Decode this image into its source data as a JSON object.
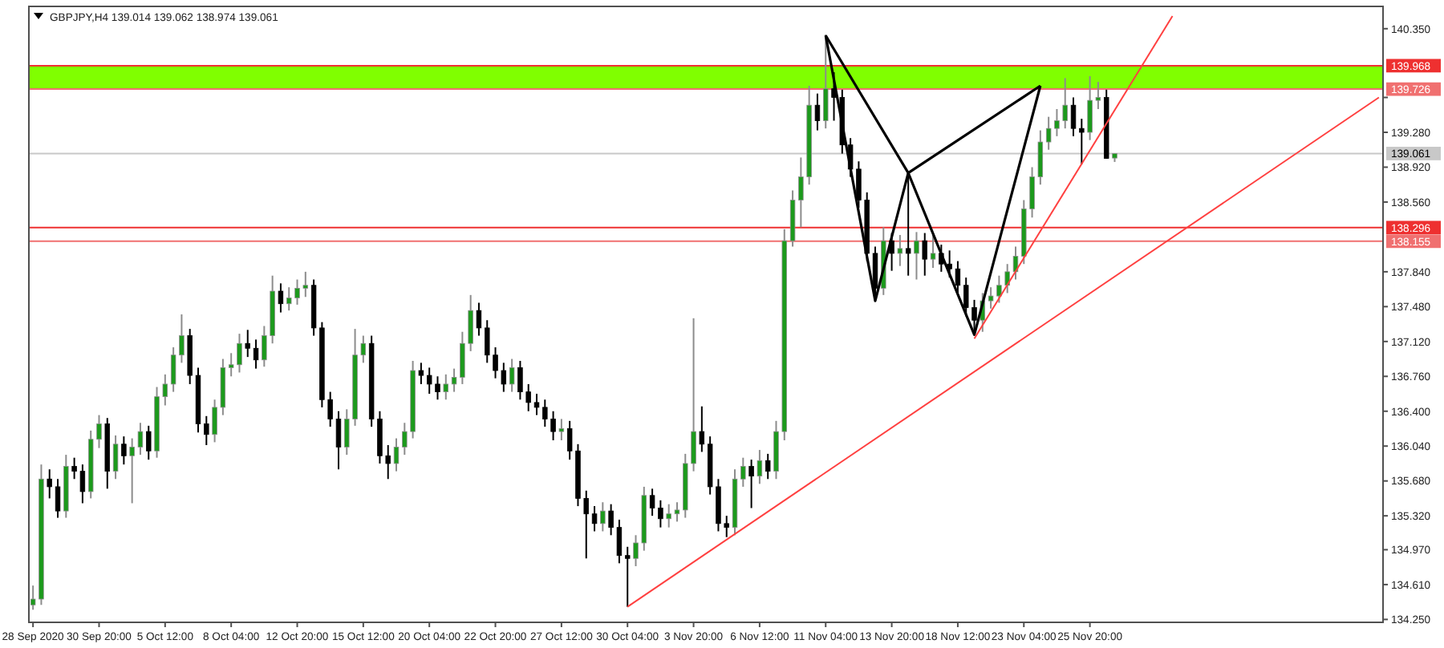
{
  "chart_data": {
    "type": "candlestick",
    "title": "GBPJPY,H4  139.014 139.062 138.974 139.061",
    "categories": [
      "28 Sep 2020",
      null,
      null,
      null,
      null,
      null,
      null,
      null,
      "30 Sep 20:00",
      null,
      null,
      null,
      null,
      null,
      null,
      null,
      "5 Oct 12:00",
      null,
      null,
      null,
      null,
      null,
      null,
      null,
      "8 Oct 04:00",
      null,
      null,
      null,
      null,
      null,
      null,
      null,
      "12 Oct 20:00",
      null,
      null,
      null,
      null,
      null,
      null,
      null,
      "15 Oct 12:00",
      null,
      null,
      null,
      null,
      null,
      null,
      null,
      "20 Oct 04:00",
      null,
      null,
      null,
      null,
      null,
      null,
      null,
      "22 Oct 20:00",
      null,
      null,
      null,
      null,
      null,
      null,
      null,
      "27 Oct 12:00",
      null,
      null,
      null,
      null,
      null,
      null,
      null,
      "30 Oct 04:00",
      null,
      null,
      null,
      null,
      null,
      null,
      null,
      "3 Nov 20:00",
      null,
      null,
      null,
      null,
      null,
      null,
      null,
      "6 Nov 12:00",
      null,
      null,
      null,
      null,
      null,
      null,
      null,
      "11 Nov 04:00",
      null,
      null,
      null,
      null,
      null,
      null,
      null,
      "13 Nov 20:00",
      null,
      null,
      null,
      null,
      null,
      null,
      null,
      "18 Nov 12:00",
      null,
      null,
      null,
      null,
      null,
      null,
      null,
      "23 Nov 04:00",
      null,
      null,
      null,
      null,
      null,
      null,
      null,
      "25 Nov 20:00",
      null,
      null,
      null,
      null,
      null,
      null,
      null,
      null,
      null,
      null,
      null,
      null,
      null,
      null,
      null,
      null,
      null,
      null,
      null,
      null,
      null,
      null,
      null,
      null,
      null,
      null,
      null,
      null,
      null,
      null,
      null,
      null,
      null,
      null,
      null
    ],
    "ylim": [
      134.22,
      140.58
    ],
    "yticks": [
      {
        "value": 140.35,
        "label": "140.350"
      },
      {
        "value": 139.64,
        "label": null
      },
      {
        "value": 139.28,
        "label": "139.280"
      },
      {
        "value": 138.92,
        "label": "138.920"
      },
      {
        "value": 138.56,
        "label": "138.560"
      },
      {
        "value": 137.84,
        "label": "137.840"
      },
      {
        "value": 137.48,
        "label": "137.480"
      },
      {
        "value": 137.12,
        "label": "137.120"
      },
      {
        "value": 136.76,
        "label": "136.760"
      },
      {
        "value": 136.4,
        "label": "136.400"
      },
      {
        "value": 136.04,
        "label": "136.040"
      },
      {
        "value": 135.68,
        "label": "135.680"
      },
      {
        "value": 135.32,
        "label": "135.320"
      },
      {
        "value": 134.97,
        "label": "134.970"
      },
      {
        "value": 134.61,
        "label": "134.610"
      },
      {
        "value": 134.25,
        "label": "134.250"
      }
    ],
    "ref_lines": [
      {
        "axis": "y",
        "value": 139.968,
        "label": "139.968",
        "color": "#ee3030"
      },
      {
        "axis": "y",
        "value": 139.726,
        "label": "139.726",
        "color": "#f07070"
      },
      {
        "axis": "y",
        "value": 139.061,
        "label": "139.061",
        "color": "#c8c8c8"
      },
      {
        "axis": "y",
        "value": 138.296,
        "label": "138.296",
        "color": "#ee3030"
      },
      {
        "axis": "y",
        "value": 138.155,
        "label": "138.155",
        "color": "#f07070"
      }
    ],
    "bands": [
      {
        "axis": "y",
        "from": 139.726,
        "to": 139.968,
        "color": "#80ff00"
      }
    ],
    "series": [
      {
        "ohlc": [
          [
            134.4,
            134.6,
            134.35,
            134.46
          ],
          [
            134.46,
            135.85,
            134.4,
            135.7
          ],
          [
            135.7,
            135.8,
            135.5,
            135.62
          ],
          [
            135.62,
            135.7,
            135.3,
            135.37
          ],
          [
            135.37,
            135.95,
            135.3,
            135.83
          ],
          [
            135.83,
            135.92,
            135.7,
            135.78
          ],
          [
            135.78,
            135.85,
            135.45,
            135.57
          ],
          [
            135.57,
            136.2,
            135.5,
            136.11
          ],
          [
            136.11,
            136.36,
            136.02,
            136.27
          ],
          [
            136.27,
            136.33,
            135.6,
            135.78
          ],
          [
            135.78,
            136.15,
            135.7,
            136.06
          ],
          [
            136.06,
            136.14,
            135.85,
            135.94
          ],
          [
            135.94,
            136.12,
            135.45,
            136.03
          ],
          [
            136.03,
            136.28,
            135.95,
            136.19
          ],
          [
            136.19,
            136.25,
            135.9,
            135.99
          ],
          [
            135.99,
            136.65,
            135.92,
            136.55
          ],
          [
            136.55,
            136.78,
            136.46,
            136.68
          ],
          [
            136.68,
            137.06,
            136.6,
            136.98
          ],
          [
            136.98,
            137.4,
            136.9,
            137.18
          ],
          [
            137.18,
            137.25,
            136.68,
            136.77
          ],
          [
            136.77,
            136.85,
            136.18,
            136.27
          ],
          [
            136.27,
            136.35,
            136.05,
            136.16
          ],
          [
            136.16,
            136.52,
            136.08,
            136.44
          ],
          [
            136.44,
            136.94,
            136.36,
            136.85
          ],
          [
            136.85,
            137.0,
            136.76,
            136.88
          ],
          [
            136.88,
            137.2,
            136.8,
            137.1
          ],
          [
            137.1,
            137.24,
            136.96,
            137.05
          ],
          [
            137.05,
            137.14,
            136.84,
            136.93
          ],
          [
            136.93,
            137.28,
            136.86,
            137.18
          ],
          [
            137.18,
            137.8,
            137.1,
            137.64
          ],
          [
            137.64,
            137.72,
            137.42,
            137.51
          ],
          [
            137.51,
            137.68,
            137.44,
            137.57
          ],
          [
            137.57,
            137.76,
            137.5,
            137.67
          ],
          [
            137.67,
            137.84,
            137.58,
            137.7
          ],
          [
            137.7,
            137.76,
            137.18,
            137.26
          ],
          [
            137.26,
            137.32,
            136.44,
            136.52
          ],
          [
            136.52,
            136.6,
            136.24,
            136.32
          ],
          [
            136.32,
            136.4,
            135.8,
            136.03
          ],
          [
            136.03,
            136.42,
            135.95,
            136.32
          ],
          [
            136.32,
            137.25,
            136.25,
            136.98
          ],
          [
            136.98,
            137.18,
            136.9,
            137.1
          ],
          [
            137.1,
            137.18,
            136.24,
            136.32
          ],
          [
            136.32,
            136.4,
            135.86,
            135.94
          ],
          [
            135.94,
            136.05,
            135.7,
            135.86
          ],
          [
            135.86,
            136.12,
            135.78,
            136.03
          ],
          [
            136.03,
            136.28,
            135.95,
            136.19
          ],
          [
            136.19,
            136.92,
            136.12,
            136.82
          ],
          [
            136.82,
            136.9,
            136.68,
            136.77
          ],
          [
            136.77,
            136.85,
            136.58,
            136.68
          ],
          [
            136.68,
            136.76,
            136.52,
            136.6
          ],
          [
            136.6,
            136.78,
            136.52,
            136.68
          ],
          [
            136.68,
            136.84,
            136.6,
            136.75
          ],
          [
            136.75,
            137.22,
            136.68,
            137.1
          ],
          [
            137.1,
            137.6,
            137.02,
            137.44
          ],
          [
            137.44,
            137.52,
            137.18,
            137.26
          ],
          [
            137.26,
            137.34,
            136.9,
            136.98
          ],
          [
            136.98,
            137.06,
            136.74,
            136.82
          ],
          [
            136.82,
            136.9,
            136.6,
            136.68
          ],
          [
            136.68,
            136.94,
            136.6,
            136.85
          ],
          [
            136.85,
            136.92,
            136.52,
            136.6
          ],
          [
            136.6,
            136.68,
            136.4,
            136.49
          ],
          [
            136.49,
            136.58,
            136.36,
            136.44
          ],
          [
            136.44,
            136.52,
            136.24,
            136.32
          ],
          [
            136.32,
            136.4,
            136.1,
            136.19
          ],
          [
            136.19,
            136.32,
            136.1,
            136.22
          ],
          [
            136.22,
            136.3,
            135.9,
            135.99
          ],
          [
            135.99,
            136.06,
            135.42,
            135.5
          ],
          [
            135.5,
            135.58,
            134.88,
            135.34
          ],
          [
            135.34,
            135.42,
            135.16,
            135.24
          ],
          [
            135.24,
            135.46,
            135.16,
            135.37
          ],
          [
            135.37,
            135.44,
            135.12,
            135.2
          ],
          [
            135.2,
            135.28,
            134.83,
            134.91
          ],
          [
            134.91,
            135.0,
            134.38,
            134.88
          ],
          [
            134.88,
            135.12,
            134.8,
            135.04
          ],
          [
            135.04,
            135.62,
            134.96,
            135.53
          ],
          [
            135.53,
            135.6,
            135.32,
            135.4
          ],
          [
            135.4,
            135.48,
            135.2,
            135.29
          ],
          [
            135.29,
            135.44,
            135.2,
            135.34
          ],
          [
            135.34,
            135.46,
            135.26,
            135.38
          ],
          [
            135.38,
            135.96,
            135.3,
            135.86
          ],
          [
            135.86,
            137.36,
            135.78,
            136.19
          ],
          [
            136.19,
            136.45,
            135.98,
            136.06
          ],
          [
            136.06,
            136.14,
            135.54,
            135.62
          ],
          [
            135.62,
            135.7,
            135.16,
            135.24
          ],
          [
            135.24,
            135.32,
            135.1,
            135.2
          ],
          [
            135.2,
            135.8,
            135.12,
            135.7
          ],
          [
            135.7,
            135.92,
            135.62,
            135.83
          ],
          [
            135.83,
            135.9,
            135.4,
            135.73
          ],
          [
            135.73,
            136.0,
            135.65,
            135.89
          ],
          [
            135.89,
            135.96,
            135.7,
            135.78
          ],
          [
            135.78,
            136.3,
            135.7,
            136.19
          ],
          [
            136.19,
            138.28,
            136.1,
            138.16
          ],
          [
            138.16,
            138.68,
            138.1,
            138.58
          ],
          [
            138.58,
            139.02,
            138.3,
            138.82
          ],
          [
            138.82,
            139.76,
            138.74,
            139.56
          ],
          [
            139.56,
            139.68,
            139.3,
            139.4
          ],
          [
            139.4,
            140.29,
            139.32,
            139.73
          ],
          [
            139.73,
            139.9,
            139.4,
            139.64
          ],
          [
            139.64,
            139.72,
            139.06,
            139.15
          ],
          [
            139.15,
            139.22,
            138.82,
            138.9
          ],
          [
            138.9,
            138.98,
            138.5,
            138.58
          ],
          [
            138.58,
            138.66,
            137.95,
            138.03
          ],
          [
            138.03,
            138.1,
            137.54,
            137.67
          ],
          [
            137.67,
            138.3,
            137.6,
            138.16
          ],
          [
            138.16,
            138.24,
            137.85,
            138.03
          ],
          [
            138.03,
            138.22,
            137.9,
            138.08
          ],
          [
            138.08,
            138.86,
            137.8,
            138.03
          ],
          [
            138.03,
            138.25,
            137.76,
            138.16
          ],
          [
            138.16,
            138.24,
            137.8,
            137.97
          ],
          [
            137.97,
            138.22,
            137.88,
            138.03
          ],
          [
            138.03,
            138.12,
            137.84,
            137.92
          ],
          [
            137.92,
            138.06,
            137.78,
            137.87
          ],
          [
            137.87,
            137.95,
            137.62,
            137.7
          ],
          [
            137.7,
            137.78,
            137.38,
            137.47
          ],
          [
            137.47,
            137.55,
            137.19,
            137.34
          ],
          [
            137.34,
            137.62,
            137.22,
            137.54
          ],
          [
            137.54,
            137.68,
            137.46,
            137.59
          ],
          [
            137.59,
            137.8,
            137.52,
            137.7
          ],
          [
            137.7,
            137.92,
            137.62,
            137.84
          ],
          [
            137.84,
            138.1,
            137.76,
            138.0
          ],
          [
            138.0,
            138.58,
            137.92,
            138.49
          ],
          [
            138.49,
            138.92,
            138.4,
            138.82
          ],
          [
            138.82,
            139.3,
            138.74,
            139.18
          ],
          [
            139.18,
            139.44,
            139.1,
            139.32
          ],
          [
            139.32,
            139.52,
            139.24,
            139.4
          ],
          [
            139.4,
            139.84,
            139.32,
            139.56
          ],
          [
            139.56,
            139.64,
            139.24,
            139.32
          ],
          [
            139.32,
            139.42,
            138.95,
            139.28
          ],
          [
            139.28,
            139.86,
            139.2,
            139.61
          ],
          [
            139.61,
            139.8,
            139.52,
            139.64
          ],
          [
            139.64,
            139.72,
            139.01,
            139.01
          ],
          [
            139.014,
            139.062,
            138.974,
            139.061
          ],
          null,
          null,
          null,
          null,
          null,
          null,
          null,
          null,
          null,
          null,
          null,
          null,
          null,
          null,
          null,
          null,
          null,
          null,
          null,
          null,
          null,
          null,
          null,
          null,
          null,
          null,
          null,
          null,
          null,
          null,
          null,
          null
        ]
      },
      {
        "type": "line",
        "color": "#000000",
        "values": [
          null,
          null,
          null,
          null,
          null,
          null,
          null,
          null,
          null,
          null,
          null,
          null,
          null,
          null,
          null,
          null,
          null,
          null,
          null,
          null,
          null,
          null,
          null,
          null,
          null,
          null,
          null,
          null,
          null,
          null,
          null,
          null,
          null,
          null,
          null,
          null,
          null,
          null,
          null,
          null,
          null,
          null,
          null,
          null,
          null,
          null,
          null,
          null,
          null,
          null,
          null,
          null,
          null,
          null,
          null,
          null,
          null,
          null,
          null,
          null,
          null,
          null,
          null,
          null,
          null,
          null,
          null,
          null,
          null,
          null,
          null,
          null,
          null,
          null,
          null,
          null,
          null,
          null,
          null,
          null,
          null,
          null,
          null,
          null,
          null,
          null,
          null,
          null,
          null,
          null,
          null,
          null,
          null,
          null,
          null,
          null,
          140.28,
          null,
          null,
          null,
          null,
          null,
          137.54,
          null,
          null,
          null,
          138.86,
          null,
          null,
          null,
          null,
          null,
          null,
          null,
          137.19,
          null,
          null,
          null,
          null,
          null,
          null,
          null,
          139.76,
          null,
          null,
          null,
          null,
          null,
          null,
          null,
          null,
          null,
          null,
          null,
          null,
          null,
          null,
          null,
          null,
          null,
          null,
          null,
          null,
          null,
          null,
          null,
          null,
          null,
          null,
          null,
          null,
          null,
          null,
          null,
          null,
          null,
          null,
          null,
          null,
          null,
          null,
          null,
          null,
          null
        ]
      },
      {
        "type": "line",
        "color": "#000000",
        "values": [
          null,
          null,
          null,
          null,
          null,
          null,
          null,
          null,
          null,
          null,
          null,
          null,
          null,
          null,
          null,
          null,
          null,
          null,
          null,
          null,
          null,
          null,
          null,
          null,
          null,
          null,
          null,
          null,
          null,
          null,
          null,
          null,
          null,
          null,
          null,
          null,
          null,
          null,
          null,
          null,
          null,
          null,
          null,
          null,
          null,
          null,
          null,
          null,
          null,
          null,
          null,
          null,
          null,
          null,
          null,
          null,
          null,
          null,
          null,
          null,
          null,
          null,
          null,
          null,
          null,
          null,
          null,
          null,
          null,
          null,
          null,
          null,
          null,
          null,
          null,
          null,
          null,
          null,
          null,
          null,
          null,
          null,
          null,
          null,
          null,
          null,
          null,
          null,
          null,
          null,
          null,
          null,
          null,
          null,
          null,
          null,
          140.28,
          null,
          null,
          null,
          null,
          null,
          null,
          null,
          null,
          null,
          138.86,
          null,
          null,
          null,
          null,
          null,
          null,
          null,
          null,
          null,
          null,
          null,
          null,
          null,
          null,
          null,
          139.76,
          null,
          null,
          null,
          null,
          null,
          null,
          null,
          null,
          null,
          null,
          null,
          null,
          null,
          null,
          null,
          null,
          null,
          null,
          null,
          null,
          null,
          null,
          null,
          null,
          null,
          null,
          null,
          null,
          null,
          null,
          null,
          null,
          null,
          null,
          null,
          null,
          null,
          null,
          null,
          null,
          null
        ]
      },
      {
        "type": "line",
        "color": "#ff4040",
        "values": [
          null,
          null,
          null,
          null,
          null,
          null,
          null,
          null,
          null,
          null,
          null,
          null,
          null,
          null,
          null,
          null,
          null,
          null,
          null,
          null,
          null,
          null,
          null,
          null,
          null,
          null,
          null,
          null,
          null,
          null,
          null,
          null,
          null,
          null,
          null,
          null,
          null,
          null,
          null,
          null,
          null,
          null,
          null,
          null,
          null,
          null,
          null,
          null,
          null,
          null,
          null,
          null,
          null,
          null,
          null,
          null,
          null,
          null,
          null,
          null,
          null,
          null,
          null,
          null,
          null,
          null,
          null,
          null,
          null,
          null,
          null,
          null,
          134.38,
          null,
          null,
          null,
          null,
          null,
          null,
          null,
          null,
          null,
          null,
          null,
          null,
          null,
          null,
          null,
          null,
          null,
          null,
          null,
          null,
          null,
          null,
          null,
          null,
          null,
          null,
          null,
          null,
          null,
          null,
          null,
          null,
          null,
          null,
          null,
          null,
          null,
          null,
          null,
          null,
          null,
          null,
          null,
          null,
          null,
          null,
          null,
          null,
          null,
          null,
          null,
          null,
          null,
          null,
          null,
          null,
          null,
          null,
          null,
          null,
          null,
          null,
          null,
          null,
          null,
          null,
          null,
          null,
          null,
          null,
          null,
          null,
          null,
          null,
          null,
          null,
          null,
          null,
          null,
          null,
          null,
          null,
          null,
          null,
          null,
          null,
          null,
          null,
          null,
          null,
          139.64
        ]
      },
      {
        "type": "line",
        "color": "#ff4040",
        "values": [
          null,
          null,
          null,
          null,
          null,
          null,
          null,
          null,
          null,
          null,
          null,
          null,
          null,
          null,
          null,
          null,
          null,
          null,
          null,
          null,
          null,
          null,
          null,
          null,
          null,
          null,
          null,
          null,
          null,
          null,
          null,
          null,
          null,
          null,
          null,
          null,
          null,
          null,
          null,
          null,
          null,
          null,
          null,
          null,
          null,
          null,
          null,
          null,
          null,
          null,
          null,
          null,
          null,
          null,
          null,
          null,
          null,
          null,
          null,
          null,
          null,
          null,
          null,
          null,
          null,
          null,
          null,
          null,
          null,
          null,
          null,
          null,
          null,
          null,
          null,
          null,
          null,
          null,
          null,
          null,
          null,
          null,
          null,
          null,
          null,
          null,
          null,
          null,
          null,
          null,
          null,
          null,
          null,
          null,
          null,
          null,
          null,
          null,
          null,
          null,
          null,
          null,
          null,
          null,
          null,
          null,
          null,
          null,
          null,
          null,
          null,
          null,
          null,
          null,
          137.15,
          null,
          null,
          null,
          null,
          null,
          null,
          null,
          null,
          null,
          null,
          null,
          null,
          null,
          null,
          null,
          null,
          null,
          null,
          null,
          null,
          null,
          null,
          null,
          140.48,
          null,
          null,
          null,
          null,
          null,
          null,
          null,
          null,
          null,
          null,
          null,
          null,
          null,
          null,
          null,
          null,
          null,
          null,
          null,
          null,
          null,
          null,
          null,
          null,
          null
        ]
      }
    ]
  }
}
